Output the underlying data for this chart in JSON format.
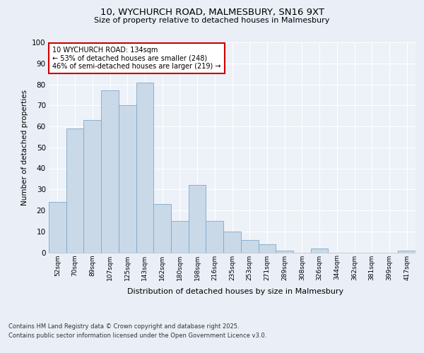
{
  "title1": "10, WYCHURCH ROAD, MALMESBURY, SN16 9XT",
  "title2": "Size of property relative to detached houses in Malmesbury",
  "xlabel": "Distribution of detached houses by size in Malmesbury",
  "ylabel": "Number of detached properties",
  "categories": [
    "52sqm",
    "70sqm",
    "89sqm",
    "107sqm",
    "125sqm",
    "143sqm",
    "162sqm",
    "180sqm",
    "198sqm",
    "216sqm",
    "235sqm",
    "253sqm",
    "271sqm",
    "289sqm",
    "308sqm",
    "326sqm",
    "344sqm",
    "362sqm",
    "381sqm",
    "399sqm",
    "417sqm"
  ],
  "values": [
    24,
    59,
    63,
    77,
    70,
    81,
    23,
    15,
    32,
    15,
    10,
    6,
    4,
    1,
    0,
    2,
    0,
    0,
    0,
    0,
    1
  ],
  "bar_color": "#c9d9e8",
  "bar_edge_color": "#7ea8c9",
  "annotation_text": "10 WYCHURCH ROAD: 134sqm\n← 53% of detached houses are smaller (248)\n46% of semi-detached houses are larger (219) →",
  "annotation_box_color": "#ffffff",
  "annotation_box_edgecolor": "#cc0000",
  "footer_line1": "Contains HM Land Registry data © Crown copyright and database right 2025.",
  "footer_line2": "Contains public sector information licensed under the Open Government Licence v3.0.",
  "bg_color": "#eaeff7",
  "plot_bg_color": "#edf1f8",
  "ylim": [
    0,
    100
  ],
  "yticks": [
    0,
    10,
    20,
    30,
    40,
    50,
    60,
    70,
    80,
    90,
    100
  ]
}
